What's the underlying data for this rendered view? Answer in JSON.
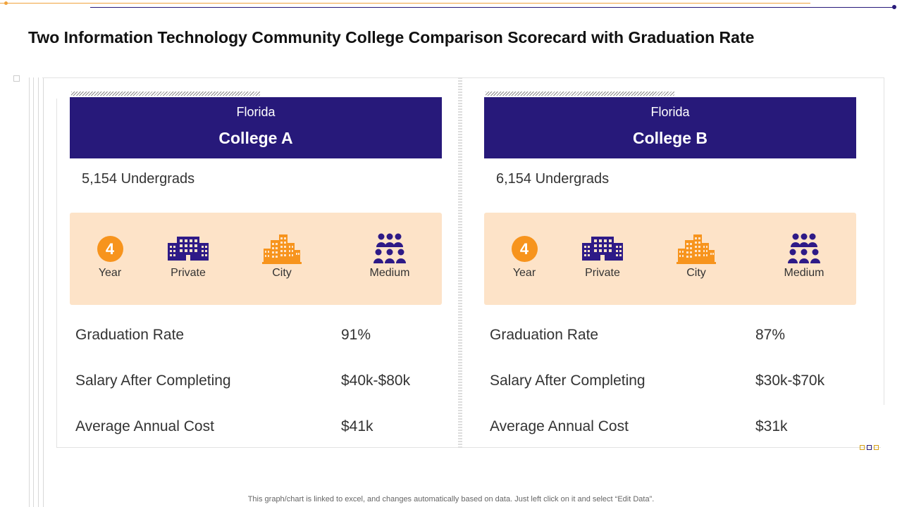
{
  "title": "Two Information Technology Community College Comparison Scorecard with Graduation Rate",
  "colors": {
    "banner": "#27197a",
    "panel": "#fde3c8",
    "accent_orange": "#f7941d",
    "icon_purple": "#2e1a87"
  },
  "colleges": [
    {
      "state": "Florida",
      "name": "College A",
      "undergrads": "5,154 Undergrads",
      "features": [
        {
          "icon": "number-badge-icon",
          "badge": "4",
          "label": "Year"
        },
        {
          "icon": "building-icon",
          "label": "Private"
        },
        {
          "icon": "city-icon",
          "label": "City"
        },
        {
          "icon": "people-group-icon",
          "label": "Medium"
        }
      ],
      "stats": [
        {
          "label": "Graduation Rate",
          "value": "91%"
        },
        {
          "label": "Salary After Completing",
          "value": "$40k-$80k"
        },
        {
          "label": "Average Annual Cost",
          "value": "$41k"
        }
      ]
    },
    {
      "state": "Florida",
      "name": "College B",
      "undergrads": "6,154 Undergrads",
      "features": [
        {
          "icon": "number-badge-icon",
          "badge": "4",
          "label": "Year"
        },
        {
          "icon": "building-icon",
          "label": "Private"
        },
        {
          "icon": "city-icon",
          "label": "City"
        },
        {
          "icon": "people-group-icon",
          "label": "Medium"
        }
      ],
      "stats": [
        {
          "label": "Graduation Rate",
          "value": "87%"
        },
        {
          "label": "Salary After Completing",
          "value": "$30k-$70k"
        },
        {
          "label": "Average Annual Cost",
          "value": "$31k"
        }
      ]
    }
  ],
  "footer_note": "This graph/chart is linked to excel,  and changes automatically based on data. Just left click on it and select “Edit Data”."
}
